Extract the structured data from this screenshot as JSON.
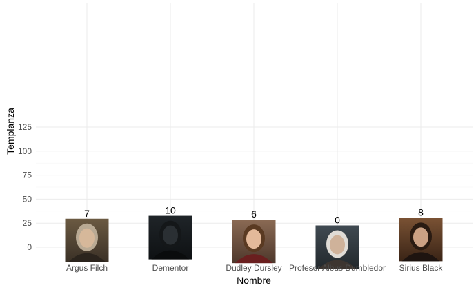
{
  "chart_data": {
    "type": "bar",
    "xlabel": "Nombre",
    "ylabel": "Templanza",
    "ylim": [
      0,
      125
    ],
    "yticks": [
      0,
      25,
      50,
      75,
      100,
      125
    ],
    "grid": true,
    "categories": [
      "Argus Filch",
      "Dementor",
      "Dudley Dursley",
      "Profesor Albus Dumbledor",
      "Sirius Black"
    ],
    "values": [
      7,
      10,
      6,
      0,
      8
    ],
    "value_labels": [
      "7",
      "10",
      "6",
      "0",
      "8"
    ],
    "marker": "character-portrait-image",
    "colors": {
      "background": "#ffffff",
      "major_grid": "#ebebeb",
      "minor_grid": "#f5f5f5",
      "tick_text": "#4d4d4d"
    }
  }
}
